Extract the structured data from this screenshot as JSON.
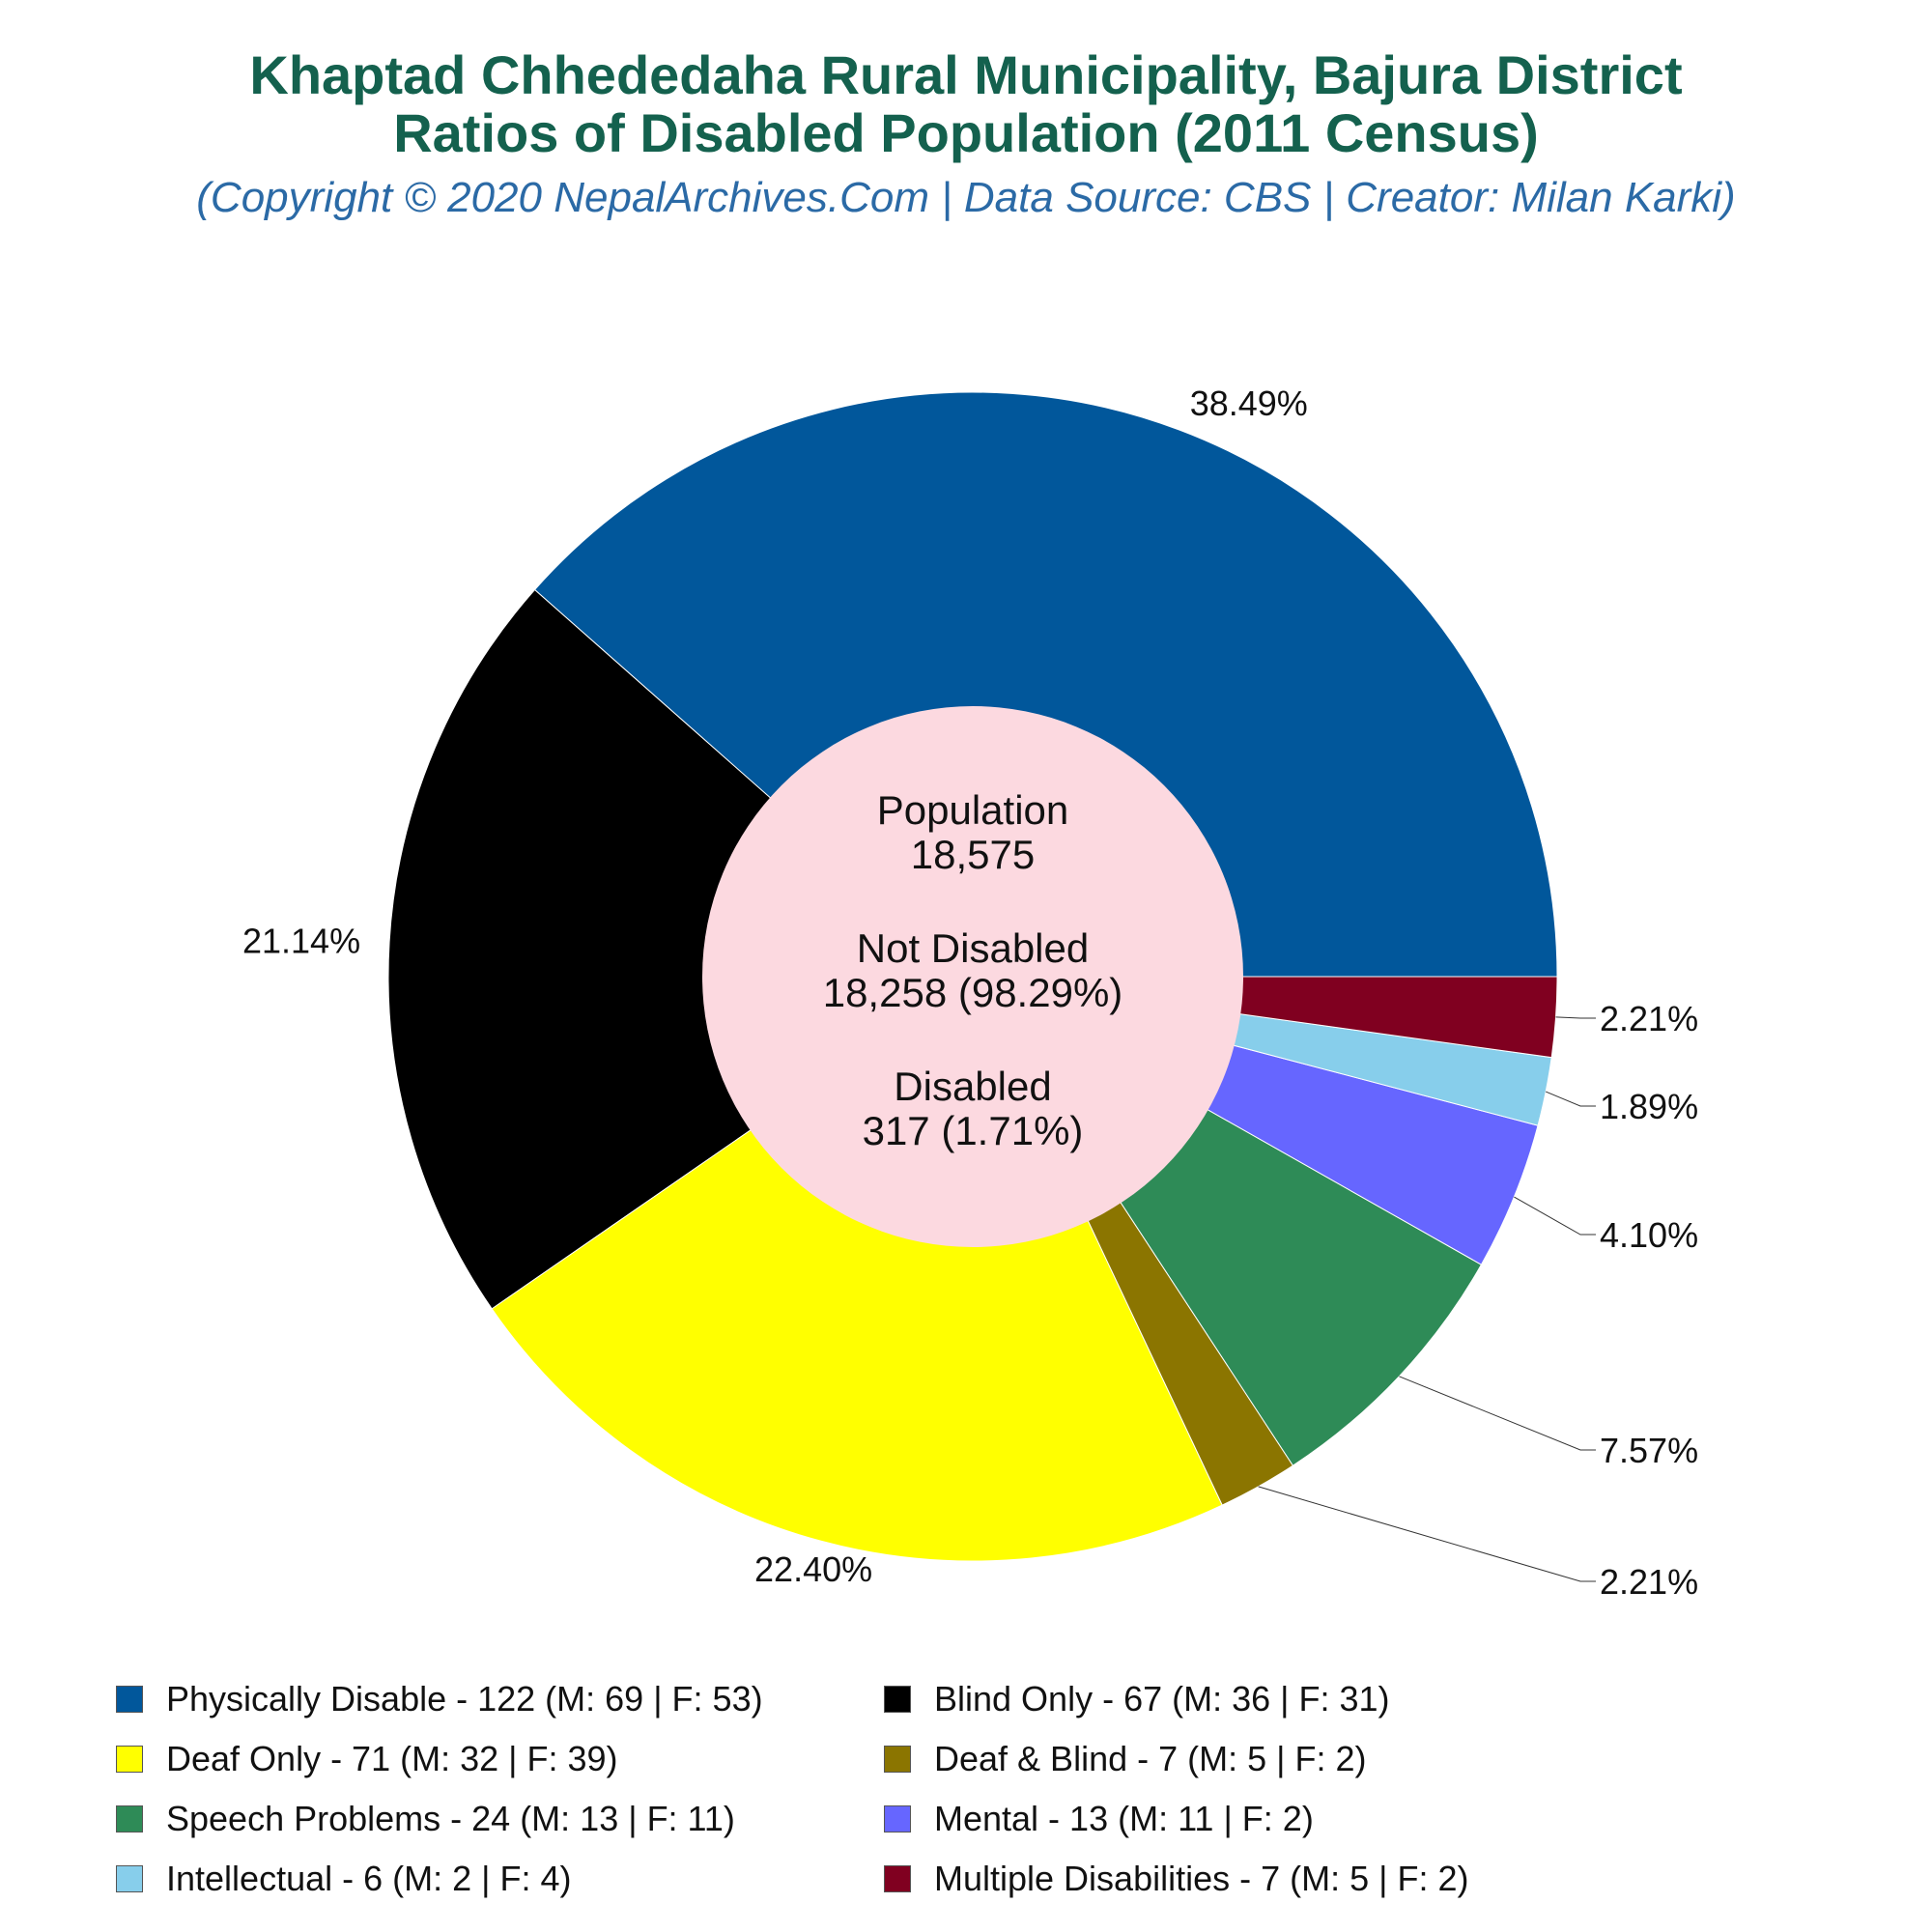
{
  "header": {
    "title_line1": "Khaptad Chhededaha Rural Municipality, Bajura District",
    "title_line2": "Ratios of Disabled Population (2011 Census)",
    "subtitle": "(Copyright © 2020 NepalArchives.Com | Data Source: CBS | Creator: Milan Karki)"
  },
  "center": {
    "population_label": "Population",
    "population_value": "18,575",
    "not_disabled_label": "Not Disabled",
    "not_disabled_value": "18,258 (98.29%)",
    "disabled_label": "Disabled",
    "disabled_value": "317 (1.71%)",
    "color": "#fcd9e0"
  },
  "chart_data": {
    "type": "pie",
    "variant": "donut",
    "total": 317,
    "slices": [
      {
        "name": "Physically Disable",
        "value": 122,
        "male": 69,
        "female": 53,
        "percent": "38.49%",
        "color": "#01579b",
        "legend_label": "Physically Disable - 122 (M: 69 | F: 53)"
      },
      {
        "name": "Blind Only",
        "value": 67,
        "male": 36,
        "female": 31,
        "percent": "21.14%",
        "color": "#000000",
        "legend_label": "Blind Only - 67 (M: 36 | F: 31)"
      },
      {
        "name": "Deaf Only",
        "value": 71,
        "male": 32,
        "female": 39,
        "percent": "22.40%",
        "color": "#ffff00",
        "legend_label": "Deaf Only - 71 (M: 32 | F: 39)"
      },
      {
        "name": "Deaf & Blind",
        "value": 7,
        "male": 5,
        "female": 2,
        "percent": "2.21%",
        "color": "#8b7500",
        "legend_label": "Deaf & Blind - 7 (M: 5 | F: 2)"
      },
      {
        "name": "Speech Problems",
        "value": 24,
        "male": 13,
        "female": 11,
        "percent": "7.57%",
        "color": "#2e8b57",
        "legend_label": "Speech Problems - 24 (M: 13 | F: 11)"
      },
      {
        "name": "Mental",
        "value": 13,
        "male": 11,
        "female": 2,
        "percent": "4.10%",
        "color": "#6666ff",
        "legend_label": "Mental - 13 (M: 11 | F: 2)"
      },
      {
        "name": "Intellectual",
        "value": 6,
        "male": 2,
        "female": 4,
        "percent": "1.89%",
        "color": "#87ceeb",
        "legend_label": "Intellectual - 6 (M: 2 | F: 4)"
      },
      {
        "name": "Multiple Disabilities",
        "value": 7,
        "male": 5,
        "female": 2,
        "percent": "2.21%",
        "color": "#800020",
        "legend_label": "Multiple Disabilities - 7 (M: 5 | F: 2)"
      }
    ],
    "legend_position": "bottom"
  }
}
